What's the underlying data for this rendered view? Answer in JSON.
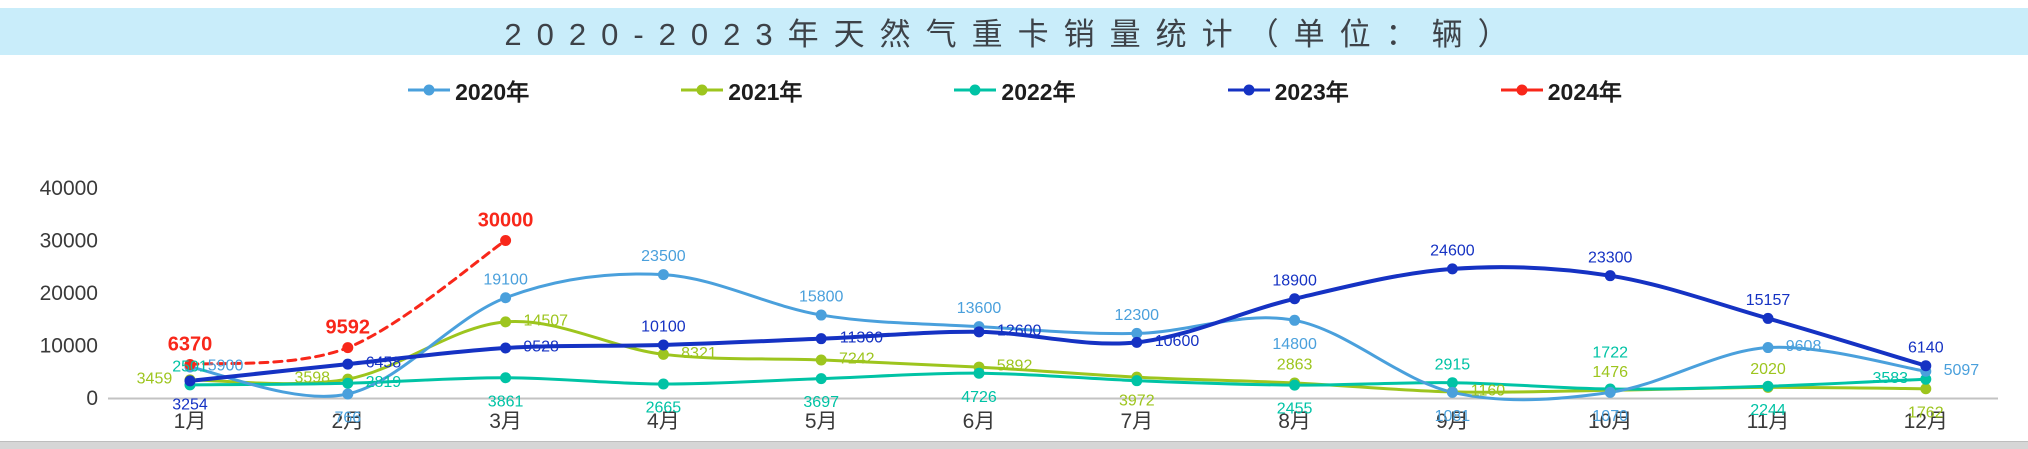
{
  "banner": {
    "title": "2020-2023年天然气重卡销量统计（单位：辆）"
  },
  "chart_data": {
    "type": "line",
    "title": "2020-2023年天然气重卡销量统计（单位：辆）",
    "categories": [
      "1月",
      "2月",
      "3月",
      "4月",
      "5月",
      "6月",
      "7月",
      "8月",
      "9月",
      "10月",
      "11月",
      "12月"
    ],
    "y_axis": {
      "min": 0,
      "max": 40000,
      "tick_interval": 10000,
      "tick_labels": [
        "0",
        "10000",
        "20000",
        "30000",
        "40000"
      ]
    },
    "grid": false,
    "legend_position": "top",
    "series": [
      {
        "name": "2020年",
        "color": "#4aa0dc",
        "style": "solid",
        "values": [
          5900,
          766,
          19100,
          23500,
          15800,
          13600,
          12300,
          14800,
          1081,
          1070,
          9608,
          5097
        ],
        "labels": [
          "5900",
          "766",
          "19100",
          "23500",
          "15800",
          "13600",
          "12300",
          "14800",
          "1081",
          "1070",
          "9608",
          "5097"
        ]
      },
      {
        "name": "2021年",
        "color": "#9dc51e",
        "style": "solid",
        "values": [
          3459,
          3598,
          14507,
          8321,
          7242,
          5892,
          3972,
          2863,
          1160,
          1476,
          2020,
          1762
        ],
        "labels": [
          "3459",
          "3598",
          "14507",
          "8321",
          "7242",
          "5892",
          "3972",
          "2863",
          "1160",
          "1476",
          "2020",
          "1762"
        ]
      },
      {
        "name": "2022年",
        "color": "#00c3a5",
        "style": "solid",
        "values": [
          2501,
          2819,
          3861,
          2665,
          3697,
          4726,
          3300,
          2455,
          2915,
          1722,
          2244,
          3583
        ],
        "labels": [
          "2501",
          "2819",
          "3861",
          "2665",
          "3697",
          "4726",
          null,
          "2455",
          "2915",
          "1722",
          "2244",
          "3583"
        ]
      },
      {
        "name": "2023年",
        "color": "#1532c3",
        "style": "solid",
        "values": [
          3254,
          6458,
          9528,
          10100,
          11300,
          12600,
          10600,
          18900,
          24600,
          23300,
          15157,
          6140
        ],
        "labels": [
          "3254",
          "6458",
          "9528",
          "10100",
          "11300",
          "12600",
          "10600",
          "18900",
          "24600",
          "23300",
          "15157",
          "6140"
        ]
      },
      {
        "name": "2024年",
        "color": "#f8271a",
        "style": "dashed",
        "values": [
          6370,
          9592,
          30000,
          null,
          null,
          null,
          null,
          null,
          null,
          null,
          null,
          null
        ],
        "labels": [
          "6370",
          "9592",
          "30000",
          null,
          null,
          null,
          null,
          null,
          null,
          null,
          null,
          null
        ]
      }
    ]
  }
}
